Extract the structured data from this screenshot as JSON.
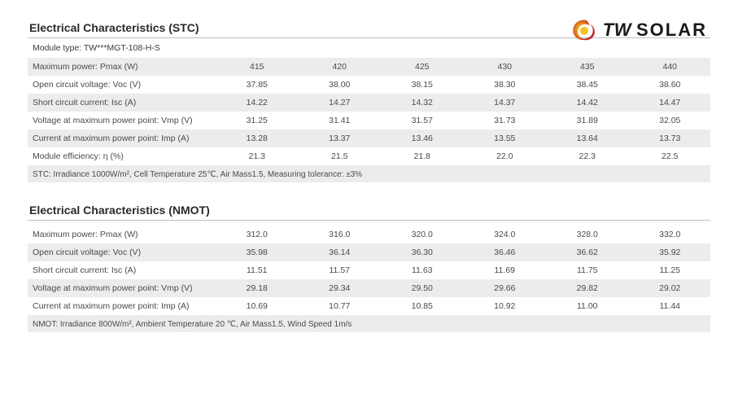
{
  "logo": {
    "brand_tw": "TW",
    "brand_solar": "SOLAR"
  },
  "stc": {
    "title": "Electrical Characteristics (STC)",
    "module_type": "Module type: TW***MGT-108-H-S",
    "rows": [
      {
        "label": "Maximum power: Pmax (W)",
        "vals": [
          "415",
          "420",
          "425",
          "430",
          "435",
          "440"
        ],
        "shade": true
      },
      {
        "label": "Open circuit voltage: Voc (V)",
        "vals": [
          "37.85",
          "38.00",
          "38.15",
          "38.30",
          "38.45",
          "38.60"
        ],
        "shade": false
      },
      {
        "label": "Short circuit current: Isc (A)",
        "vals": [
          "14.22",
          "14.27",
          "14.32",
          "14.37",
          "14.42",
          "14.47"
        ],
        "shade": true
      },
      {
        "label": "Voltage at maximum power point: Vmp (V)",
        "vals": [
          "31.25",
          "31.41",
          "31.57",
          "31.73",
          "31.89",
          "32.05"
        ],
        "shade": false
      },
      {
        "label": "Current at maximum power point: Imp (A)",
        "vals": [
          "13.28",
          "13.37",
          "13.46",
          "13.55",
          "13.64",
          "13.73"
        ],
        "shade": true
      },
      {
        "label": "Module efficiency: η (%)",
        "vals": [
          "21.3",
          "21.5",
          "21.8",
          "22.0",
          "22.3",
          "22.5"
        ],
        "shade": false
      }
    ],
    "footnote": "STC: Irradiance 1000W/m²,  Cell Temperature 25℃,  Air Mass1.5,  Measuring tolerance:  ±3%",
    "footnote_shade": true
  },
  "nmot": {
    "title": "Electrical Characteristics (NMOT)",
    "rows": [
      {
        "label": "Maximum power: Pmax (W)",
        "vals": [
          "312.0",
          "316.0",
          "320.0",
          "324.0",
          "328.0",
          "332.0"
        ],
        "shade": false
      },
      {
        "label": "Open circuit voltage: Voc (V)",
        "vals": [
          "35.98",
          "36.14",
          "36.30",
          "36.46",
          "36.62",
          "35.92"
        ],
        "shade": true
      },
      {
        "label": "Short circuit current: Isc (A)",
        "vals": [
          "11.51",
          "11.57",
          "11.63",
          "11.69",
          "11.75",
          "11.25"
        ],
        "shade": false
      },
      {
        "label": "Voltage at maximum power point: Vmp (V)",
        "vals": [
          "29.18",
          "29.34",
          "29.50",
          "29.66",
          "29.82",
          "29.02"
        ],
        "shade": true
      },
      {
        "label": "Current at maximum power point: Imp (A)",
        "vals": [
          "10.69",
          "10.77",
          "10.85",
          "10.92",
          "11.00",
          "11.44"
        ],
        "shade": false
      }
    ],
    "footnote": "NMOT: Irradiance 800W/m², Ambient Temperature 20 ℃, Air Mass1.5, Wind Speed 1m/s",
    "footnote_shade": true
  },
  "colors": {
    "row_shade": "#ececec",
    "text": "#4a4a4a",
    "title": "#2a2a2a",
    "border": "#bfbfbf",
    "logo_orange": "#e07a1a",
    "logo_red": "#c0272d",
    "logo_yellow": "#f5c518"
  }
}
